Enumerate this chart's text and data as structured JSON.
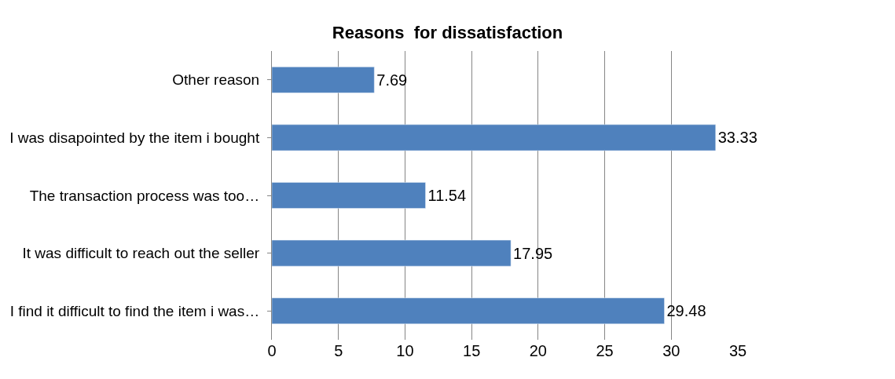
{
  "chart_data": {
    "type": "bar",
    "title": "Reasons  for dissatisfaction",
    "orientation": "horizontal",
    "categories": [
      "Other reason",
      "I was disapointed by the item i bought",
      "The transaction process was too…",
      "It was difficult to reach out the seller",
      "I find it difficult to find the item i was…"
    ],
    "values": [
      7.69,
      33.33,
      11.54,
      17.95,
      29.48
    ],
    "color": "#4f81bd",
    "xlim": [
      0,
      35
    ],
    "xticks": [
      0,
      5,
      10,
      15,
      20,
      25,
      30,
      35
    ],
    "grid": "x",
    "data_labels": true
  }
}
